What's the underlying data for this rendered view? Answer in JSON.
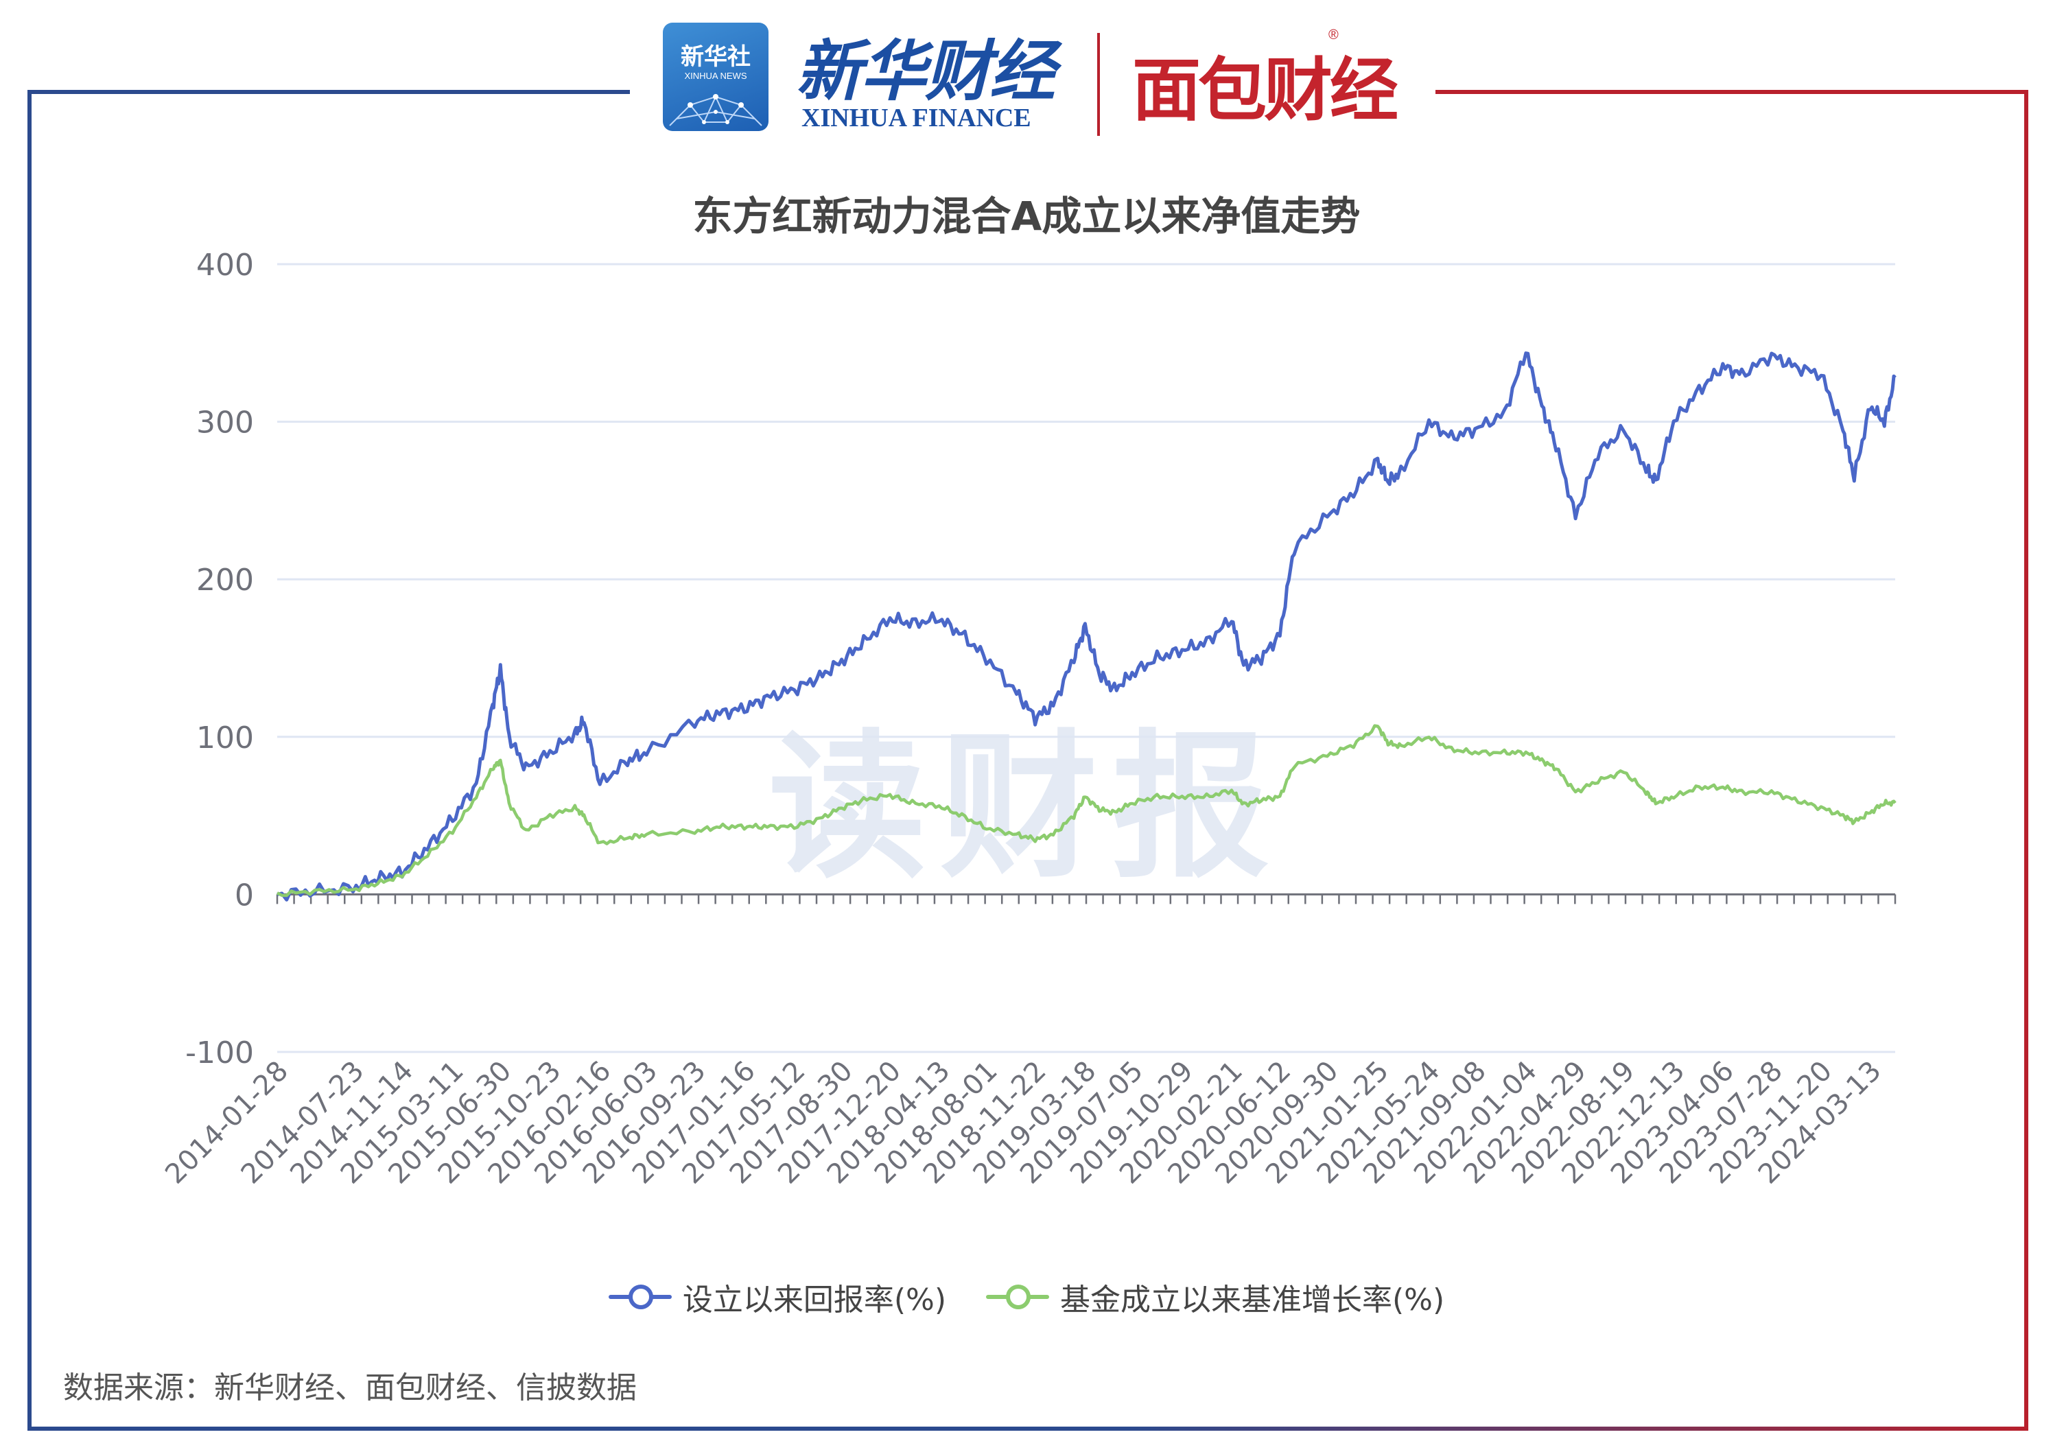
{
  "header": {
    "xinhua_logo_title": "新华社",
    "xinhua_logo_sub": "XINHUA NEWS",
    "xinhua_finance_cn": "新华财经",
    "xinhua_finance_en": "XINHUA FINANCE",
    "mianbao_logo": "面包财经",
    "mianbao_reg": "®"
  },
  "colors": {
    "frame_left": "#2b4a8e",
    "frame_right": "#b8202c",
    "series_return": "#4a67c8",
    "series_benchmark": "#8ccc6e",
    "grid": "#dfe6f3"
  },
  "watermark": "读财报",
  "source": "数据来源：新华财经、面包财经、信披数据",
  "chart_data": {
    "type": "line",
    "title": "东方红新动力混合A成立以来净值走势",
    "xlabel": "",
    "ylabel": "",
    "ylim": [
      -100,
      400
    ],
    "yticks": [
      -100,
      0,
      100,
      200,
      300,
      400
    ],
    "grid": true,
    "legend_position": "bottom",
    "x_tick_labels": [
      "2014-01-28",
      "2014-07-23",
      "2014-11-14",
      "2015-03-11",
      "2015-06-30",
      "2015-10-23",
      "2016-02-16",
      "2016-06-03",
      "2016-09-23",
      "2017-01-16",
      "2017-05-12",
      "2017-08-30",
      "2017-12-20",
      "2018-04-13",
      "2018-08-01",
      "2018-11-22",
      "2019-03-18",
      "2019-07-05",
      "2019-10-29",
      "2020-02-21",
      "2020-06-12",
      "2020-09-30",
      "2021-01-25",
      "2021-05-24",
      "2021-09-08",
      "2022-01-04",
      "2022-04-29",
      "2022-08-19",
      "2022-12-13",
      "2023-04-06",
      "2023-07-28",
      "2023-11-20",
      "2024-03-13"
    ],
    "x": [
      "2014-01-28",
      "2014-04-25",
      "2014-07-23",
      "2014-09-18",
      "2014-11-14",
      "2015-01-12",
      "2015-03-11",
      "2015-05-05",
      "2015-06-12",
      "2015-06-30",
      "2015-07-20",
      "2015-08-28",
      "2015-10-23",
      "2015-12-20",
      "2016-01-10",
      "2016-02-16",
      "2016-04-20",
      "2016-06-03",
      "2016-09-23",
      "2016-11-20",
      "2017-01-16",
      "2017-03-10",
      "2017-05-12",
      "2017-07-10",
      "2017-08-30",
      "2017-10-20",
      "2017-12-20",
      "2018-02-10",
      "2018-04-13",
      "2018-06-05",
      "2018-08-01",
      "2018-10-10",
      "2018-11-22",
      "2019-01-03",
      "2019-02-20",
      "2019-03-18",
      "2019-04-20",
      "2019-05-25",
      "2019-07-05",
      "2019-09-01",
      "2019-10-29",
      "2019-12-25",
      "2020-02-21",
      "2020-03-20",
      "2020-04-30",
      "2020-06-12",
      "2020-07-15",
      "2020-09-30",
      "2020-11-30",
      "2021-01-25",
      "2021-02-18",
      "2021-03-20",
      "2021-05-24",
      "2021-07-15",
      "2021-09-08",
      "2021-11-15",
      "2022-01-04",
      "2022-02-10",
      "2022-03-15",
      "2022-04-29",
      "2022-06-20",
      "2022-08-19",
      "2022-10-10",
      "2022-11-01",
      "2022-12-13",
      "2023-02-10",
      "2023-04-06",
      "2023-05-20",
      "2023-07-28",
      "2023-09-20",
      "2023-11-20",
      "2024-01-10",
      "2024-02-05",
      "2024-03-13",
      "2024-04-15",
      "2024-05-10"
    ],
    "series": [
      {
        "name": "设立以来回报率(%)",
        "values": [
          0,
          2,
          4,
          10,
          14,
          30,
          48,
          70,
          120,
          143,
          100,
          80,
          90,
          102,
          110,
          70,
          85,
          90,
          110,
          115,
          118,
          125,
          130,
          138,
          148,
          160,
          175,
          172,
          175,
          165,
          150,
          128,
          112,
          120,
          150,
          170,
          140,
          130,
          140,
          150,
          155,
          160,
          175,
          145,
          150,
          165,
          220,
          240,
          255,
          275,
          262,
          268,
          300,
          290,
          295,
          305,
          345,
          310,
          285,
          240,
          280,
          295,
          270,
          262,
          300,
          320,
          335,
          330,
          342,
          335,
          330,
          295,
          265,
          310,
          300,
          328
        ]
      },
      {
        "name": "基金成立以来基准增长率(%)",
        "values": [
          0,
          2,
          3,
          7,
          12,
          25,
          40,
          62,
          80,
          85,
          58,
          40,
          50,
          55,
          50,
          32,
          36,
          38,
          40,
          43,
          43,
          43,
          43,
          48,
          55,
          60,
          63,
          58,
          56,
          50,
          42,
          38,
          35,
          38,
          50,
          62,
          54,
          52,
          58,
          62,
          62,
          62,
          66,
          57,
          60,
          62,
          82,
          88,
          95,
          107,
          96,
          94,
          100,
          92,
          90,
          90,
          90,
          85,
          80,
          65,
          72,
          78,
          65,
          58,
          62,
          68,
          68,
          65,
          65,
          60,
          55,
          50,
          46,
          52,
          58,
          58
        ]
      }
    ]
  }
}
